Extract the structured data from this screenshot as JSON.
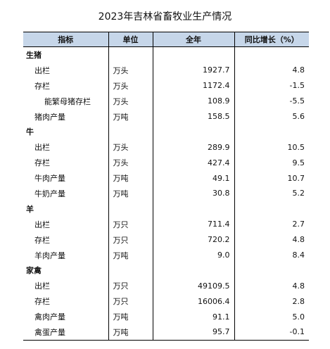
{
  "title": "2023年吉林省畜牧业生产情况",
  "headers": {
    "indicator": "指标",
    "unit": "单位",
    "year": "全年",
    "growth": "同比增长（%）"
  },
  "sections": [
    {
      "category": "生猪",
      "rows": [
        {
          "name": "出栏",
          "unit": "万头",
          "value": "1927.7",
          "growth": "4.8"
        },
        {
          "name": "存栏",
          "unit": "万头",
          "value": "1172.4",
          "growth": "-1.5"
        },
        {
          "name": "能繁母猪存栏",
          "unit": "万头",
          "value": "108.9",
          "growth": "-5.5"
        },
        {
          "name": "猪肉产量",
          "unit": "万吨",
          "value": "158.5",
          "growth": "5.6"
        }
      ]
    },
    {
      "category": "牛",
      "rows": [
        {
          "name": "出栏",
          "unit": "万头",
          "value": "289.9",
          "growth": "10.5"
        },
        {
          "name": "存栏",
          "unit": "万头",
          "value": "427.4",
          "growth": "9.5"
        },
        {
          "name": "牛肉产量",
          "unit": "万吨",
          "value": "49.1",
          "growth": "10.7"
        },
        {
          "name": "牛奶产量",
          "unit": "万吨",
          "value": "30.8",
          "growth": "5.2"
        }
      ]
    },
    {
      "category": "羊",
      "rows": [
        {
          "name": "出栏",
          "unit": "万只",
          "value": "711.4",
          "growth": "2.7"
        },
        {
          "name": "存栏",
          "unit": "万只",
          "value": "720.2",
          "growth": "4.8"
        },
        {
          "name": "羊肉产量",
          "unit": "万吨",
          "value": "9.0",
          "growth": "8.4"
        }
      ]
    },
    {
      "category": "家禽",
      "rows": [
        {
          "name": "出栏",
          "unit": "万只",
          "value": "49109.5",
          "growth": "4.8"
        },
        {
          "name": "存栏",
          "unit": "万只",
          "value": "16006.4",
          "growth": "2.8"
        },
        {
          "name": "禽肉产量",
          "unit": "万吨",
          "value": "91.1",
          "growth": "5.0"
        },
        {
          "name": "禽蛋产量",
          "unit": "万吨",
          "value": "95.7",
          "growth": "-0.1"
        }
      ]
    }
  ]
}
